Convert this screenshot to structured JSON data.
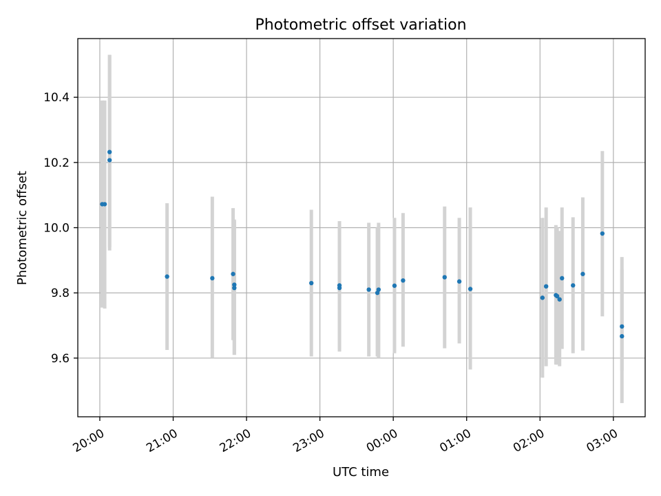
{
  "chart_data": {
    "type": "scatter",
    "title": "Photometric offset variation",
    "xlabel": "UTC time",
    "ylabel": "Photometric offset",
    "xlim": [
      "19:42",
      "03:26"
    ],
    "ylim": [
      9.42,
      10.58
    ],
    "x_ticks": [
      "20:00",
      "21:00",
      "22:00",
      "23:00",
      "00:00",
      "01:00",
      "02:00",
      "03:00"
    ],
    "y_ticks": [
      9.6,
      9.8,
      10.0,
      10.2,
      10.4
    ],
    "grid": true,
    "colors": {
      "point": "#1f77b4",
      "errorbar": "#d3d3d3"
    },
    "points": [
      {
        "time": "20:02",
        "y": 10.072,
        "lo": 9.755,
        "hi": 10.39
      },
      {
        "time": "20:04",
        "y": 10.072,
        "lo": 9.752,
        "hi": 10.39
      },
      {
        "time": "20:08",
        "y": 10.232,
        "lo": 9.94,
        "hi": 10.53
      },
      {
        "time": "20:08",
        "y": 10.207,
        "lo": 9.93,
        "hi": 10.53
      },
      {
        "time": "20:55",
        "y": 9.85,
        "lo": 9.625,
        "hi": 10.075
      },
      {
        "time": "21:32",
        "y": 9.845,
        "lo": 9.6,
        "hi": 10.095
      },
      {
        "time": "21:49",
        "y": 9.858,
        "lo": 9.655,
        "hi": 10.06
      },
      {
        "time": "21:50",
        "y": 9.825,
        "lo": 9.61,
        "hi": 10.025
      },
      {
        "time": "21:50",
        "y": 9.815,
        "lo": 9.61,
        "hi": 10.02
      },
      {
        "time": "22:53",
        "y": 9.83,
        "lo": 9.605,
        "hi": 10.055
      },
      {
        "time": "23:16",
        "y": 9.823,
        "lo": 9.62,
        "hi": 10.02
      },
      {
        "time": "23:16",
        "y": 9.815,
        "lo": 9.63,
        "hi": 10.0
      },
      {
        "time": "23:40",
        "y": 9.81,
        "lo": 9.605,
        "hi": 10.015
      },
      {
        "time": "23:47",
        "y": 9.8,
        "lo": 9.605,
        "hi": 10.0
      },
      {
        "time": "23:48",
        "y": 9.81,
        "lo": 9.6,
        "hi": 10.015
      },
      {
        "time": "00:01",
        "y": 9.822,
        "lo": 9.615,
        "hi": 10.03
      },
      {
        "time": "00:08",
        "y": 9.838,
        "lo": 9.635,
        "hi": 10.045
      },
      {
        "time": "00:42",
        "y": 9.848,
        "lo": 9.63,
        "hi": 10.065
      },
      {
        "time": "00:54",
        "y": 9.835,
        "lo": 9.645,
        "hi": 10.03
      },
      {
        "time": "01:03",
        "y": 9.812,
        "lo": 9.565,
        "hi": 10.062
      },
      {
        "time": "02:02",
        "y": 9.785,
        "lo": 9.54,
        "hi": 10.03
      },
      {
        "time": "02:05",
        "y": 9.82,
        "lo": 9.575,
        "hi": 10.062
      },
      {
        "time": "02:13",
        "y": 9.793,
        "lo": 9.58,
        "hi": 10.008
      },
      {
        "time": "02:14",
        "y": 9.79,
        "lo": 9.58,
        "hi": 10.0
      },
      {
        "time": "02:16",
        "y": 9.78,
        "lo": 9.575,
        "hi": 9.99
      },
      {
        "time": "02:18",
        "y": 9.845,
        "lo": 9.628,
        "hi": 10.062
      },
      {
        "time": "02:27",
        "y": 9.823,
        "lo": 9.615,
        "hi": 10.032
      },
      {
        "time": "02:35",
        "y": 9.858,
        "lo": 9.623,
        "hi": 10.093
      },
      {
        "time": "02:51",
        "y": 9.982,
        "lo": 9.728,
        "hi": 10.235
      },
      {
        "time": "03:07",
        "y": 9.697,
        "lo": 9.562,
        "hi": 9.91
      },
      {
        "time": "03:07",
        "y": 9.667,
        "lo": 9.462,
        "hi": 9.872
      }
    ]
  }
}
